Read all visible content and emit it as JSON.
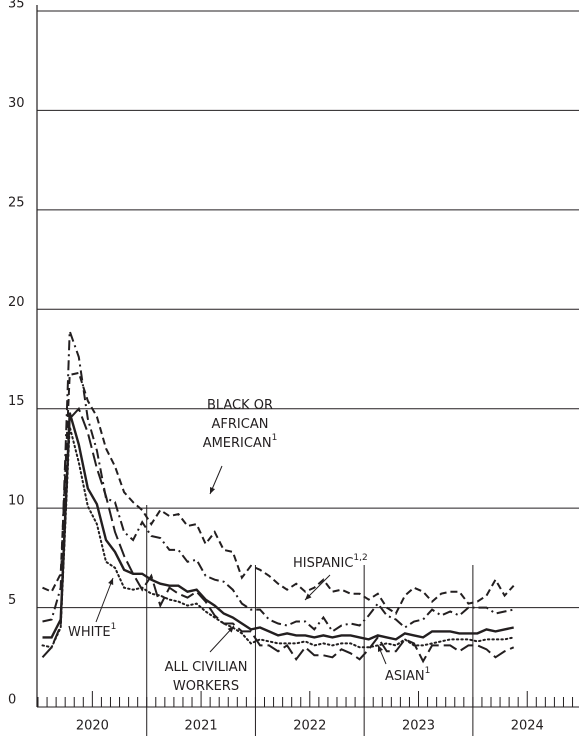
{
  "chart_data": {
    "type": "line",
    "categories": [
      null,
      null,
      null,
      null,
      null,
      null,
      null,
      null,
      null,
      null,
      null,
      null,
      null,
      null,
      null,
      null,
      null,
      null,
      null,
      null,
      null,
      null,
      null,
      null,
      null,
      null,
      null,
      null,
      null,
      null,
      null,
      null,
      null,
      null,
      null,
      null,
      null,
      null,
      null,
      null,
      null,
      null,
      null,
      null,
      null,
      null,
      null,
      null,
      null,
      null,
      null,
      null,
      null
    ],
    "year_labels": [
      "2020",
      "2021",
      "2022",
      "2023",
      "2024"
    ],
    "ylim": [
      0,
      35
    ],
    "yticks": [
      0,
      5,
      10,
      15,
      20,
      25,
      30,
      35
    ],
    "grid": true,
    "series": [
      {
        "label": {
          "lines": [
            "ALL CIVILIAN",
            "WORKERS"
          ],
          "sup": null
        },
        "color": "#231f20",
        "dash": "solid",
        "values": [
          3.5,
          3.5,
          4.4,
          14.8,
          13.2,
          11.0,
          10.2,
          8.4,
          7.8,
          6.9,
          6.7,
          6.7,
          6.4,
          6.2,
          6.1,
          6.1,
          5.8,
          5.9,
          5.4,
          5.1,
          4.7,
          4.5,
          4.2,
          3.9,
          4.0,
          3.8,
          3.6,
          3.7,
          3.6,
          3.6,
          3.5,
          3.6,
          3.5,
          3.6,
          3.6,
          3.5,
          3.4,
          3.6,
          3.5,
          3.4,
          3.7,
          3.6,
          3.5,
          3.8,
          3.8,
          3.8,
          3.7,
          3.7,
          3.7,
          3.9,
          3.8,
          3.9,
          4.0
        ]
      },
      {
        "label": {
          "lines": [
            "WHITE"
          ],
          "sup": "1"
        },
        "color": "#231f20",
        "dash": "dotted",
        "values": [
          3.1,
          3.0,
          4.0,
          14.1,
          12.3,
          10.1,
          9.2,
          7.3,
          7.0,
          6.0,
          5.9,
          6.0,
          5.7,
          5.6,
          5.4,
          5.3,
          5.1,
          5.2,
          4.8,
          4.5,
          4.2,
          4.0,
          3.7,
          3.2,
          3.4,
          3.3,
          3.2,
          3.2,
          3.2,
          3.3,
          3.1,
          3.2,
          3.1,
          3.2,
          3.2,
          3.0,
          3.0,
          3.1,
          3.2,
          3.1,
          3.4,
          3.1,
          3.1,
          3.2,
          3.3,
          3.4,
          3.4,
          3.4,
          3.3,
          3.4,
          3.4,
          3.4,
          3.5
        ]
      },
      {
        "label": {
          "lines": [
            "BLACK OR",
            "AFRICAN",
            "AMERICAN"
          ],
          "sup": "1"
        },
        "color": "#231f20",
        "dash": "dashed",
        "values": [
          6.0,
          5.8,
          6.7,
          16.7,
          16.8,
          15.4,
          14.6,
          13.0,
          12.1,
          10.8,
          10.3,
          9.9,
          9.2,
          9.9,
          9.6,
          9.7,
          9.1,
          9.2,
          8.2,
          8.8,
          7.9,
          7.8,
          6.5,
          7.1,
          6.9,
          6.6,
          6.2,
          5.9,
          6.2,
          5.8,
          6.0,
          6.4,
          5.8,
          5.9,
          5.7,
          5.7,
          5.4,
          5.7,
          5.0,
          4.7,
          5.6,
          6.0,
          5.8,
          5.3,
          5.7,
          5.8,
          5.8,
          5.2,
          5.3,
          5.6,
          6.4,
          5.6,
          6.1
        ]
      },
      {
        "label": {
          "lines": [
            "HISPANIC"
          ],
          "sup": "1,2"
        },
        "color": "#231f20",
        "dash": "dashdot",
        "values": [
          4.3,
          4.4,
          6.0,
          18.9,
          17.6,
          14.5,
          12.9,
          10.5,
          10.3,
          8.8,
          8.4,
          9.3,
          8.6,
          8.5,
          7.9,
          7.9,
          7.3,
          7.4,
          6.6,
          6.4,
          6.3,
          5.9,
          5.2,
          4.9,
          4.9,
          4.4,
          4.2,
          4.1,
          4.3,
          4.3,
          3.9,
          4.5,
          3.8,
          4.1,
          4.2,
          4.1,
          4.6,
          5.2,
          4.6,
          4.4,
          4.0,
          4.3,
          4.4,
          4.9,
          4.6,
          4.8,
          4.6,
          5.0,
          5.0,
          5.0,
          4.7,
          4.8,
          4.9
        ]
      },
      {
        "label": {
          "lines": [
            "ASIAN"
          ],
          "sup": "1"
        },
        "color": "#231f20",
        "dash": "longdash",
        "values": [
          2.5,
          3.0,
          4.1,
          14.5,
          15.0,
          13.8,
          12.0,
          10.6,
          8.8,
          7.6,
          6.7,
          5.9,
          6.6,
          5.1,
          6.0,
          5.7,
          5.5,
          5.8,
          5.3,
          4.6,
          4.2,
          4.2,
          3.8,
          3.8,
          3.1,
          3.1,
          2.8,
          3.1,
          2.4,
          3.0,
          2.6,
          2.6,
          2.5,
          2.9,
          2.7,
          2.4,
          2.9,
          3.5,
          2.8,
          2.8,
          3.4,
          3.2,
          2.3,
          3.1,
          3.1,
          3.1,
          2.8,
          3.1,
          3.1,
          2.9,
          2.5,
          2.8,
          3.0
        ]
      }
    ]
  }
}
